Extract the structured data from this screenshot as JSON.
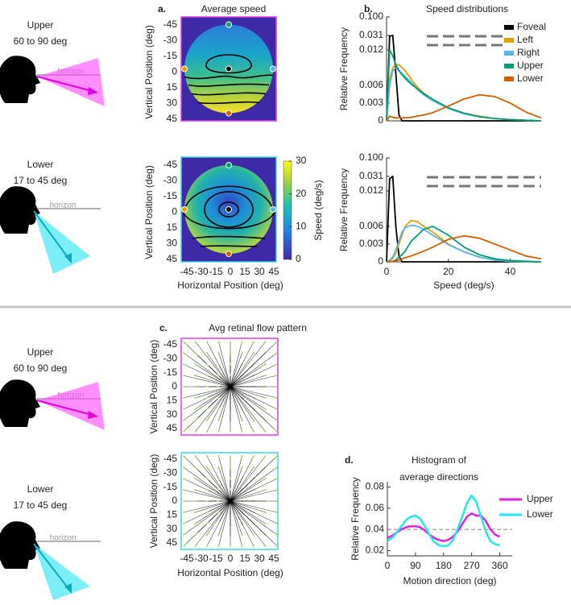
{
  "views": [
    {
      "name": "Upper",
      "range": "60 to 90 deg",
      "horizon": "horizon"
    },
    {
      "name": "Lower",
      "range": "17 to 45 deg",
      "horizon": "horizon"
    },
    {
      "name": "Upper",
      "range": "60 to 90 deg",
      "horizon": "horizon"
    },
    {
      "name": "Lower",
      "range": "17 to 45 deg",
      "horizon": "horizon"
    }
  ],
  "chart_data": [
    {
      "type": "heatmap",
      "panel": "a.",
      "title": "Average speed",
      "ylabel": "Vertical Position (deg)",
      "xlim": [
        -45,
        45
      ],
      "ylim": [
        -45,
        45
      ],
      "y_inverted": true,
      "yticks": [
        -45,
        -30,
        -15,
        0,
        15,
        30,
        45
      ],
      "border_color": "#e23de2"
    },
    {
      "type": "heatmap",
      "ylabel": "Vertical Position (deg)",
      "xlabel": "Horizontal Position (deg)",
      "xlim": [
        -45,
        45
      ],
      "ylim": [
        -45,
        45
      ],
      "y_inverted": true,
      "xticks": [
        -45,
        -30,
        -15,
        0,
        15,
        30,
        45
      ],
      "yticks": [
        -45,
        -30,
        -15,
        0,
        15,
        30,
        45
      ],
      "border_color": "#3fd6e6",
      "colorbar": {
        "label": "Speed (deg/s)",
        "lim": [
          0,
          30
        ],
        "ticks": [
          0,
          10,
          20,
          30
        ]
      }
    },
    {
      "type": "line",
      "panel": "b.",
      "title": "Speed distributions",
      "ylabel": "Relative Frequency",
      "x": [
        0,
        1,
        2,
        3,
        4,
        5,
        6,
        8,
        10,
        12,
        15,
        20,
        25,
        30,
        35,
        40,
        45,
        50
      ],
      "series": [
        {
          "name": "Foveal",
          "color": "#000000",
          "values": [
            0,
            0.03,
            0.031,
            0.008,
            0.001,
            0,
            0,
            0,
            0,
            0,
            0,
            0,
            0,
            0,
            0,
            0,
            0,
            0
          ]
        },
        {
          "name": "Left",
          "color": "#e69f00",
          "values": [
            0,
            0.007,
            0.009,
            0.0095,
            0.0095,
            0.009,
            0.0085,
            0.007,
            0.0057,
            0.0047,
            0.0036,
            0.0022,
            0.0013,
            0.0008,
            0.0004,
            0.0002,
            0.0001,
            0
          ]
        },
        {
          "name": "Right",
          "color": "#56b4e9",
          "values": [
            0,
            0.006,
            0.0085,
            0.009,
            0.0085,
            0.008,
            0.0075,
            0.0065,
            0.0053,
            0.0044,
            0.0034,
            0.0021,
            0.0012,
            0.0007,
            0.0004,
            0.0002,
            0.0001,
            0
          ]
        },
        {
          "name": "Upper",
          "color": "#009e73",
          "values": [
            0,
            0.012,
            0.011,
            0.0095,
            0.0085,
            0.0078,
            0.0072,
            0.0062,
            0.0054,
            0.0046,
            0.0036,
            0.0022,
            0.0013,
            0.0007,
            0.0004,
            0.0002,
            0.0001,
            0
          ]
        },
        {
          "name": "Lower",
          "color": "#d55e00",
          "values": [
            0,
            0.0008,
            0.0006,
            0.0005,
            0.0005,
            0.0005,
            0.0005,
            0.0006,
            0.0008,
            0.001,
            0.0014,
            0.0025,
            0.0037,
            0.0044,
            0.0041,
            0.003,
            0.0015,
            0.0005
          ]
        }
      ],
      "xlim": [
        0,
        50
      ],
      "ylim": [
        0,
        0.1
      ],
      "y_axis_break": true,
      "yticks": [
        0,
        0.003,
        0.006,
        0.012,
        0.031,
        {
          "value": 0.1,
          "label": "0.100"
        }
      ],
      "legend": "upper right"
    },
    {
      "type": "line",
      "ylabel": "Relative Frequency",
      "xlabel": "Speed (deg/s)",
      "x": [
        0,
        1,
        2,
        3,
        4,
        5,
        6,
        8,
        10,
        12,
        15,
        20,
        25,
        30,
        35,
        40,
        45,
        50
      ],
      "series": [
        {
          "name": "Foveal",
          "color": "#000000",
          "values": [
            0,
            0.028,
            0.031,
            0.006,
            0.001,
            0,
            0,
            0,
            0,
            0,
            0,
            0,
            0,
            0,
            0,
            0,
            0,
            0
          ]
        },
        {
          "name": "Left",
          "color": "#e69f00",
          "values": [
            0,
            0.0002,
            0.0006,
            0.0015,
            0.003,
            0.0045,
            0.006,
            0.007,
            0.0068,
            0.006,
            0.005,
            0.003,
            0.0017,
            0.0008,
            0.0003,
            0.0001,
            0,
            0
          ]
        },
        {
          "name": "Right",
          "color": "#56b4e9",
          "values": [
            0,
            0.0003,
            0.0008,
            0.002,
            0.0035,
            0.005,
            0.0058,
            0.0062,
            0.006,
            0.0055,
            0.0045,
            0.0029,
            0.0017,
            0.0008,
            0.0003,
            0.0001,
            0,
            0
          ]
        },
        {
          "name": "Upper",
          "color": "#009e73",
          "values": [
            0,
            0,
            0.0001,
            0.0003,
            0.0008,
            0.0012,
            0.0018,
            0.0035,
            0.0045,
            0.0055,
            0.006,
            0.0045,
            0.0025,
            0.0012,
            0.0005,
            0.0002,
            0.0001,
            0
          ]
        },
        {
          "name": "Lower",
          "color": "#d55e00",
          "values": [
            0,
            0,
            0.0001,
            0.0002,
            0.0003,
            0.0005,
            0.0007,
            0.001,
            0.0014,
            0.0018,
            0.0025,
            0.0038,
            0.0044,
            0.004,
            0.003,
            0.002,
            0.001,
            0.0005
          ]
        }
      ],
      "xlim": [
        0,
        50
      ],
      "ylim": [
        0,
        0.1
      ],
      "y_axis_break": true,
      "xticks": [
        0,
        20,
        40
      ],
      "yticks": [
        0,
        0.003,
        0.006,
        0.012,
        0.031,
        {
          "value": 0.1,
          "label": "0.100"
        }
      ]
    },
    {
      "type": "quiver",
      "panel": "c.",
      "title": "Avg retinal flow pattern",
      "ylabel": "Vertical Position (deg)",
      "xlim": [
        -45,
        45
      ],
      "ylim": [
        -45,
        45
      ],
      "y_inverted": true,
      "yticks": [
        -45,
        -30,
        -15,
        0,
        15,
        30,
        45
      ],
      "border_color": "#e23de2"
    },
    {
      "type": "quiver",
      "ylabel": "Vertical Position (deg)",
      "xlabel": "Horizontal Position (deg)",
      "xlim": [
        -45,
        45
      ],
      "ylim": [
        -45,
        45
      ],
      "y_inverted": true,
      "xticks": [
        -45,
        -30,
        -15,
        0,
        15,
        30,
        45
      ],
      "yticks": [
        -45,
        -30,
        -15,
        0,
        15,
        30,
        45
      ],
      "border_color": "#3fd6e6"
    },
    {
      "type": "line",
      "panel": "d.",
      "title": [
        "Histogram of",
        "average directions"
      ],
      "ylabel": "Relative Frequency",
      "xlabel": "Motion direction (deg)",
      "x": [
        0,
        15,
        30,
        45,
        60,
        75,
        90,
        105,
        120,
        135,
        150,
        165,
        180,
        195,
        210,
        225,
        240,
        255,
        270,
        285,
        300,
        315,
        330,
        345,
        360
      ],
      "series": [
        {
          "name": "Upper",
          "color": "#e21fe2",
          "values": [
            0.032,
            0.034,
            0.037,
            0.04,
            0.042,
            0.043,
            0.043,
            0.042,
            0.039,
            0.035,
            0.032,
            0.03,
            0.029,
            0.03,
            0.033,
            0.038,
            0.045,
            0.052,
            0.055,
            0.053,
            0.053,
            0.048,
            0.04,
            0.035,
            0.033
          ]
        },
        {
          "name": "Lower",
          "color": "#22e6f0",
          "values": [
            0.029,
            0.032,
            0.037,
            0.043,
            0.049,
            0.052,
            0.053,
            0.05,
            0.043,
            0.035,
            0.028,
            0.025,
            0.024,
            0.025,
            0.03,
            0.04,
            0.052,
            0.065,
            0.072,
            0.066,
            0.052,
            0.038,
            0.029,
            0.026,
            0.025
          ]
        }
      ],
      "xlim": [
        0,
        400
      ],
      "ylim": [
        0.015,
        0.085
      ],
      "xticks": [
        0,
        90,
        180,
        270,
        360
      ],
      "yticks": [
        0.02,
        0.04,
        0.06,
        0.08
      ],
      "reference_line": 0.04,
      "legend": "upper right"
    }
  ]
}
